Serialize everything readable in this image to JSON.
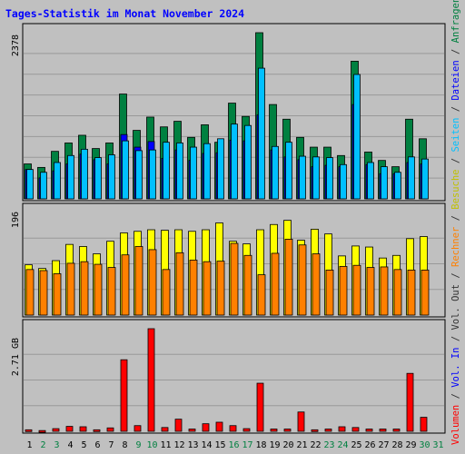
{
  "chart_data": [
    {
      "type": "bar",
      "title": "Tages-Statistik im Monat November 2024",
      "categories": [
        "1",
        "2",
        "3",
        "4",
        "5",
        "6",
        "7",
        "8",
        "9",
        "10",
        "11",
        "12",
        "13",
        "14",
        "15",
        "16",
        "17",
        "18",
        "19",
        "20",
        "21",
        "22",
        "23",
        "24",
        "25",
        "26",
        "27",
        "28",
        "29",
        "30",
        "31"
      ],
      "weekend_days": [
        "2",
        "3",
        "9",
        "10",
        "16",
        "17",
        "23",
        "24",
        "30",
        "31"
      ],
      "y_tick_label": "2378",
      "ylim": [
        0,
        2378
      ],
      "series": [
        {
          "name": "Anfragen",
          "color": "#008040",
          "values": [
            500,
            450,
            680,
            800,
            910,
            720,
            800,
            1500,
            980,
            1170,
            1030,
            1110,
            880,
            1060,
            810,
            1370,
            1180,
            2378,
            1350,
            1140,
            880,
            740,
            740,
            620,
            1970,
            670,
            550,
            460,
            1140,
            860,
            0
          ]
        },
        {
          "name": "Dateien",
          "color": "#0000ff",
          "values": [
            420,
            300,
            400,
            500,
            640,
            560,
            500,
            920,
            740,
            820,
            580,
            700,
            550,
            650,
            660,
            840,
            830,
            1200,
            700,
            600,
            560,
            460,
            480,
            460,
            1350,
            490,
            360,
            360,
            520,
            500,
            0
          ]
        },
        {
          "name": "Seiten",
          "color": "#00c0ff",
          "values": [
            420,
            380,
            520,
            620,
            710,
            590,
            630,
            830,
            690,
            700,
            810,
            800,
            740,
            790,
            860,
            1070,
            1050,
            1870,
            750,
            810,
            610,
            600,
            590,
            490,
            1780,
            520,
            460,
            380,
            600,
            570,
            0
          ]
        }
      ]
    },
    {
      "type": "bar",
      "y_tick_label": "196",
      "ylim": [
        0,
        196
      ],
      "series": [
        {
          "name": "Besuche",
          "color": "#ffff00",
          "values": [
            96,
            89,
            104,
            135,
            131,
            117,
            141,
            157,
            160,
            163,
            162,
            163,
            160,
            163,
            176,
            141,
            136,
            163,
            173,
            181,
            143,
            164,
            155,
            113,
            132,
            130,
            109,
            114,
            146,
            150,
            0
          ]
        },
        {
          "name": "Rechner",
          "color": "#ff8000",
          "values": [
            87,
            85,
            79,
            99,
            102,
            97,
            91,
            115,
            131,
            125,
            87,
            119,
            105,
            102,
            103,
            137,
            114,
            77,
            118,
            145,
            134,
            117,
            86,
            93,
            95,
            91,
            92,
            87,
            86,
            86,
            0
          ]
        }
      ]
    },
    {
      "type": "bar",
      "y_tick_label": "2.71 GB",
      "ylim": [
        0,
        2.71
      ],
      "series": [
        {
          "name": "Volumen",
          "color": "#ff0000",
          "values": [
            0.04,
            0.02,
            0.07,
            0.13,
            0.12,
            0.04,
            0.09,
            1.89,
            0.15,
            2.71,
            0.1,
            0.32,
            0.06,
            0.2,
            0.24,
            0.15,
            0.07,
            1.27,
            0.06,
            0.06,
            0.51,
            0.04,
            0.06,
            0.12,
            0.1,
            0.06,
            0.06,
            0.06,
            1.53,
            0.37,
            0
          ]
        }
      ]
    }
  ],
  "right_legend": {
    "parts": [
      {
        "text": "Volumen",
        "color": "#ff0000"
      },
      {
        "text": " / ",
        "color": "#333333"
      },
      {
        "text": "Vol. In",
        "color": "#0000ff"
      },
      {
        "text": " / ",
        "color": "#333333"
      },
      {
        "text": "Vol. Out",
        "color": "#333333"
      },
      {
        "text": " / ",
        "color": "#333333"
      },
      {
        "text": "Rechner",
        "color": "#ff8000"
      },
      {
        "text": " / ",
        "color": "#333333"
      },
      {
        "text": "Besuche",
        "color": "#c0c000"
      },
      {
        "text": " / ",
        "color": "#333333"
      },
      {
        "text": "Seiten",
        "color": "#00c0ff"
      },
      {
        "text": " / ",
        "color": "#333333"
      },
      {
        "text": "Dateien",
        "color": "#0000ff"
      },
      {
        "text": " / ",
        "color": "#333333"
      },
      {
        "text": "Anfragen",
        "color": "#008040"
      }
    ]
  },
  "colors": {
    "title": "#0000ff",
    "weekday_label": "#000000",
    "weekend_label": "#008040",
    "grid": "#999999",
    "panel_border": "#000000"
  }
}
